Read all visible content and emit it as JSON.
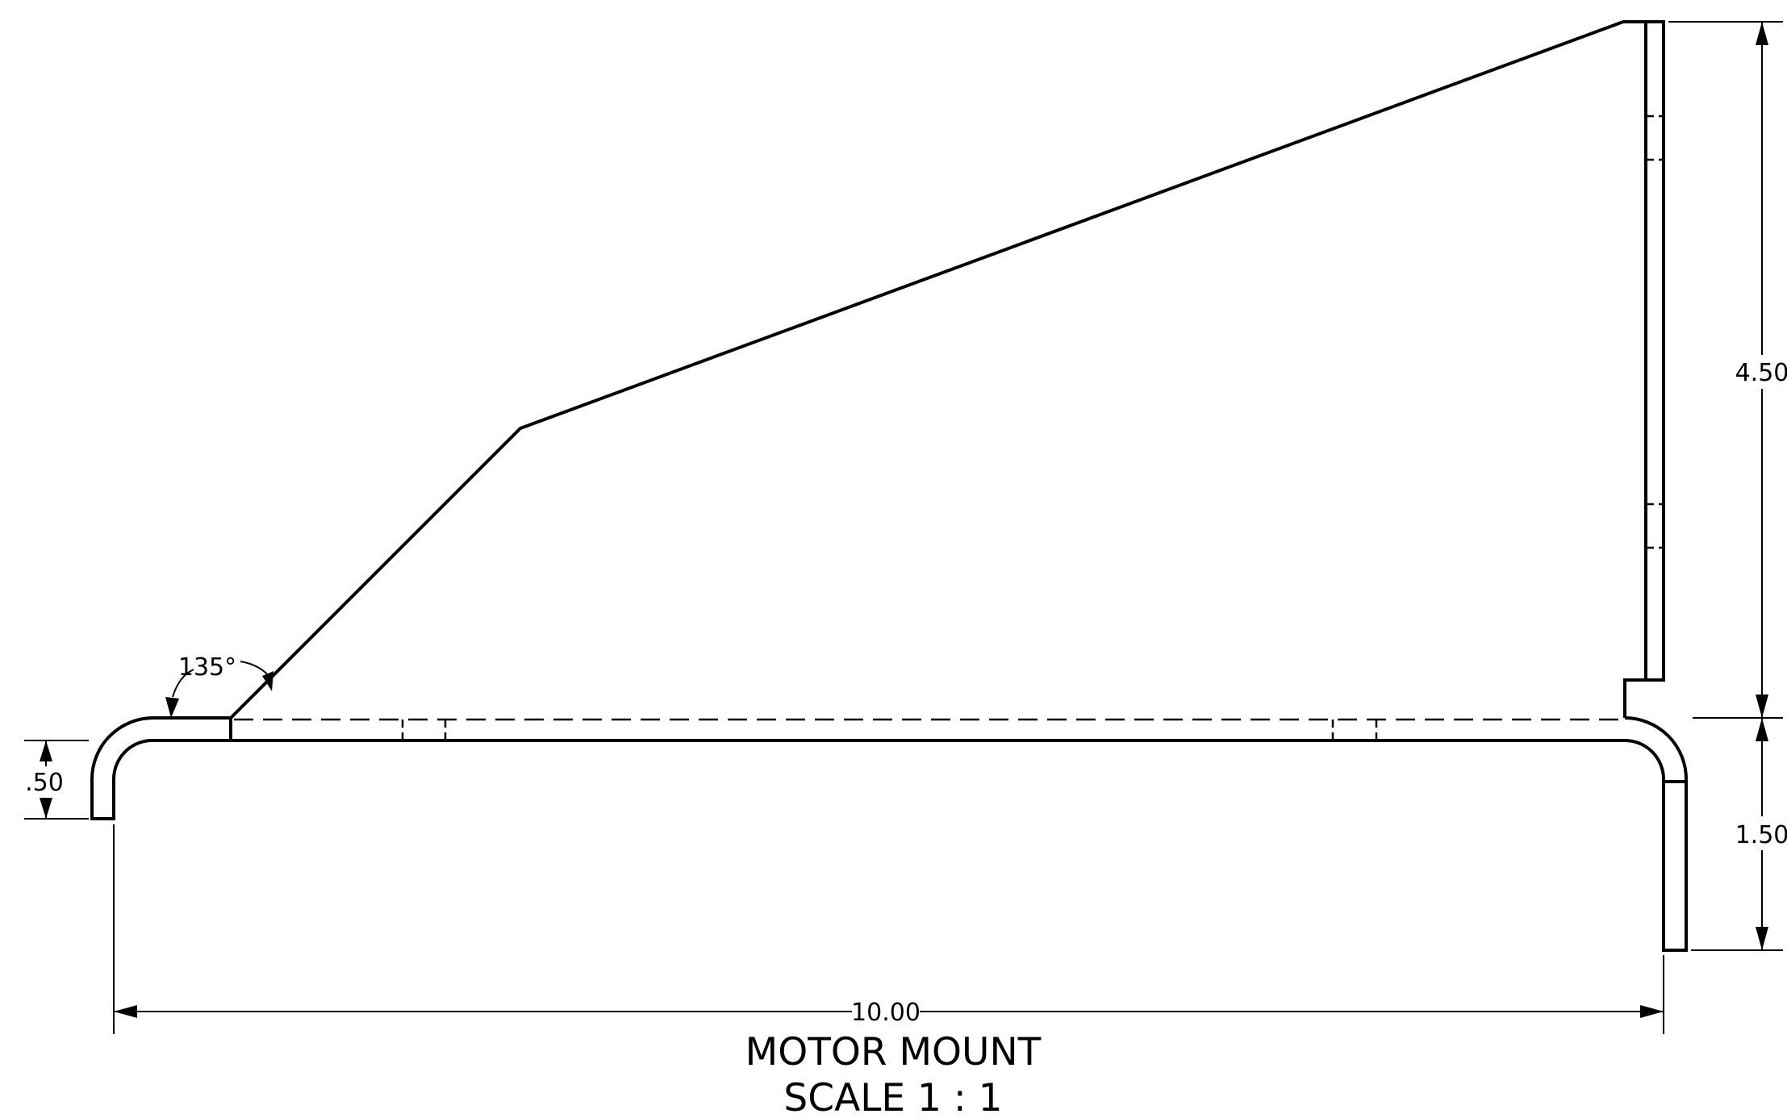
{
  "drawing": {
    "title": "MOTOR MOUNT",
    "scale": "SCALE 1 : 1"
  },
  "dimensions": {
    "overall_width": "10.00",
    "upper_height": "4.50",
    "lower_height": "1.50",
    "left_flange": ".50",
    "angle": "135°"
  }
}
